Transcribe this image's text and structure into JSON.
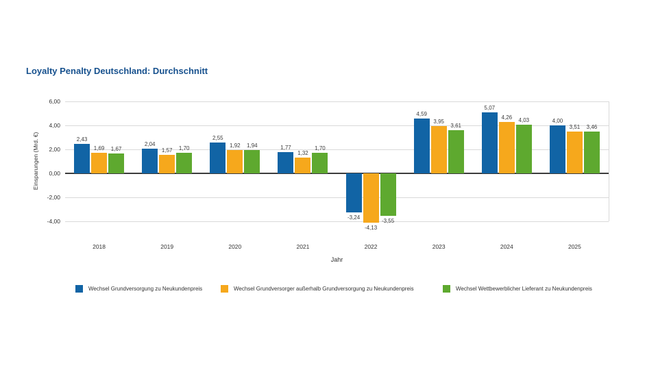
{
  "title": {
    "text": "Loyalty Penalty Deutschland: Durchschnitt",
    "color": "#17518E"
  },
  "chart_data": {
    "type": "bar",
    "title": "Loyalty Penalty Deutschland: Durchschnitt",
    "categories": [
      "2018",
      "2019",
      "2020",
      "2021",
      "2022",
      "2023",
      "2024",
      "2025"
    ],
    "series": [
      {
        "name": "Wechsel Grundversorgung zu Neukundenpreis",
        "color": "#1164A5",
        "values": [
          2.43,
          2.04,
          2.55,
          1.77,
          -3.24,
          4.59,
          5.07,
          4.0
        ]
      },
      {
        "name": "Wechsel Grundversorger außerhalb Grundversorgung zu Neukundenpreis",
        "color": "#F6A81C",
        "values": [
          1.69,
          1.57,
          1.92,
          1.32,
          -4.13,
          3.95,
          4.26,
          3.51
        ]
      },
      {
        "name": "Wechsel Wettbewerblicher Lieferant zu Neukundenpreis",
        "color": "#5EA92F",
        "values": [
          1.67,
          1.7,
          1.94,
          1.7,
          -3.55,
          3.61,
          4.03,
          3.46
        ]
      }
    ],
    "xlabel": "Jahr",
    "ylabel": "Einsparungen (Mrd. €)",
    "ylim": [
      -4.8,
      6.3
    ],
    "yticks": {
      "values": [
        6,
        4,
        2,
        0,
        -2,
        -4
      ],
      "labels": [
        "6,00",
        "4,00",
        "2,00",
        "0,00",
        "-2,00",
        "-4,00"
      ]
    },
    "value_labels": true,
    "decimal_separator": ",",
    "grid": "horizontal",
    "legend_position": "bottom"
  }
}
